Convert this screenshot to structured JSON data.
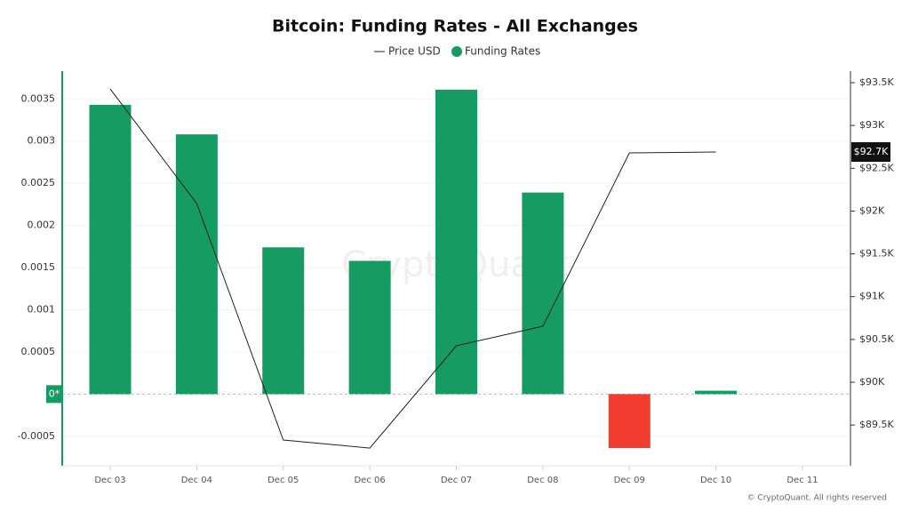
{
  "chart_data": {
    "type": "bar-line",
    "title": "Bitcoin: Funding Rates - All Exchanges",
    "categories": [
      "Dec 03",
      "Dec 04",
      "Dec 05",
      "Dec 06",
      "Dec 07",
      "Dec 08",
      "Dec 09",
      "Dec 10",
      "Dec 11"
    ],
    "series": [
      {
        "name": "Funding Rates",
        "type": "bar",
        "color": "#169b62",
        "negative_color": "#f23c2f",
        "values": [
          0.00343,
          0.00308,
          0.00174,
          0.00158,
          0.00361,
          0.00239,
          -0.00064,
          4e-05,
          null
        ]
      },
      {
        "name": "Price USD",
        "type": "line",
        "axis": "y2",
        "color": "#222222",
        "values": [
          93427,
          92088,
          89325,
          89231,
          90426,
          90654,
          92679,
          92690,
          null
        ]
      }
    ],
    "ylim": [
      -0.00085,
      0.00383
    ],
    "yticks": [
      -0.0005,
      {
        "value": 0,
        "label": "0*"
      },
      0.0005,
      0.001,
      0.0015,
      0.002,
      0.0025,
      0.003,
      0.0035
    ],
    "y2lim": [
      89024,
      93635
    ],
    "y2ticks": [
      {
        "value": 89500,
        "label": "$89.5K"
      },
      {
        "value": 90000,
        "label": "$90K"
      },
      {
        "value": 90500,
        "label": "$90.5K"
      },
      {
        "value": 91000,
        "label": "$91K"
      },
      {
        "value": 91500,
        "label": "$91.5K"
      },
      {
        "value": 92000,
        "label": "$92K"
      },
      {
        "value": 92500,
        "label": "$92.5K"
      },
      {
        "value": 93000,
        "label": "$93K"
      },
      {
        "value": 93500,
        "label": "$93.5K"
      }
    ],
    "current_price": {
      "value": 92690,
      "label": "$92.7K"
    },
    "grid": true,
    "watermark": "CryptoQuant",
    "copyright": "© CryptoQuant. All rights reserved"
  }
}
